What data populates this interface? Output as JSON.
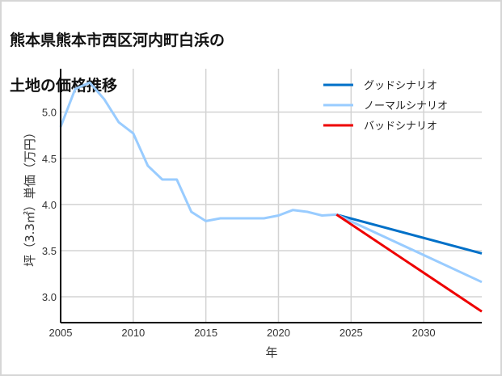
{
  "title_line1": "熊本県熊本市西区河内町白浜の",
  "title_line2": "土地の価格推移",
  "chart_data": {
    "type": "line",
    "title": "熊本県熊本市西区河内町白浜の土地の価格推移",
    "xlabel": "年",
    "ylabel": "坪（3.3㎡）単価（万円）",
    "xlim": [
      2005,
      2034
    ],
    "ylim": [
      2.72,
      5.47
    ],
    "x_ticks": [
      2005,
      2010,
      2015,
      2020,
      2025,
      2030
    ],
    "y_ticks": [
      3.0,
      3.5,
      4.0,
      4.5,
      5.0
    ],
    "y_tick_labels": [
      "3.0",
      "3.5",
      "4.0",
      "4.5",
      "5.0"
    ],
    "grid": true,
    "legend_position": "upper right",
    "series": [
      {
        "name": "ノーマルシナリオ",
        "color": "#99ccff",
        "x": [
          2005,
          2006,
          2007,
          2008,
          2009,
          2010,
          2011,
          2012,
          2013,
          2014,
          2015,
          2016,
          2017,
          2018,
          2019,
          2020,
          2021,
          2022,
          2023,
          2024
        ],
        "values": [
          4.84,
          5.25,
          5.32,
          5.14,
          4.89,
          4.77,
          4.42,
          4.27,
          4.27,
          3.92,
          3.82,
          3.85,
          3.85,
          3.85,
          3.85,
          3.88,
          3.94,
          3.92,
          3.88,
          3.89
        ]
      },
      {
        "name": "グッドシナリオ",
        "color": "#0070c8",
        "x": [
          2024,
          2034
        ],
        "values": [
          3.89,
          3.47
        ]
      },
      {
        "name": "ノーマルシナリオ",
        "color": "#99ccff",
        "x": [
          2024,
          2034
        ],
        "values": [
          3.89,
          3.16
        ]
      },
      {
        "name": "バッドシナリオ",
        "color": "#ee0000",
        "x": [
          2024,
          2034
        ],
        "values": [
          3.89,
          2.84
        ]
      }
    ],
    "legend": [
      {
        "label": "グッドシナリオ",
        "color": "#0070c8"
      },
      {
        "label": "ノーマルシナリオ",
        "color": "#99ccff"
      },
      {
        "label": "バッドシナリオ",
        "color": "#ee0000"
      }
    ]
  }
}
